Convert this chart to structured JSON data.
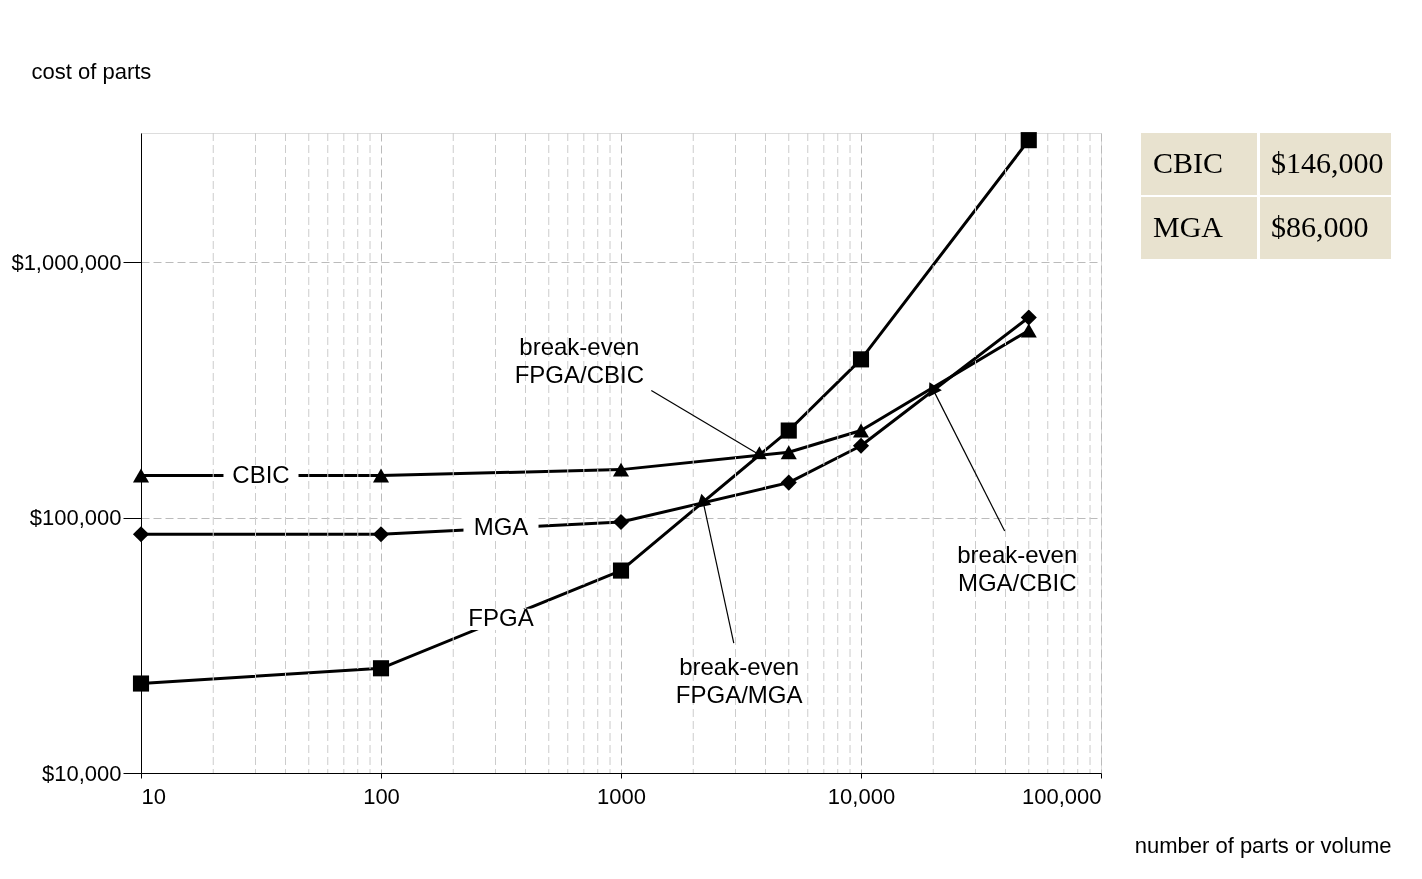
{
  "chart_data": {
    "type": "line",
    "xlabel": "number of parts or volume",
    "ylabel": "cost of parts",
    "log": "xy",
    "grid": true,
    "legend": false,
    "line_style": "solid",
    "x": [
      10,
      100,
      1000,
      5000,
      10000,
      50000
    ],
    "xlim": [
      10,
      100000
    ],
    "ylim": [
      10000,
      3200000
    ],
    "xticks": [
      10,
      100,
      1000,
      {
        "value": 10000,
        "label": "10,000"
      },
      {
        "value": 100000,
        "label": "100,000"
      }
    ],
    "yticks": [
      {
        "value": 10000,
        "label": "$10,000"
      },
      {
        "value": 100000,
        "label": "$100,000"
      },
      {
        "value": 1000000,
        "label": "$1,000,000"
      }
    ],
    "series": [
      {
        "name": "CBIC",
        "color": "#000000",
        "marker": "triangle",
        "values": [
          146000,
          146000,
          154000,
          180000,
          219000,
          540000
        ]
      },
      {
        "name": "MGA",
        "color": "#000000",
        "marker": "diamond",
        "values": [
          86000,
          86000,
          96000,
          137000,
          191000,
          607000
        ]
      },
      {
        "name": "FPGA",
        "color": "#000000",
        "marker": "square",
        "values": [
          22400,
          25700,
          62000,
          219000,
          416000,
          3000000
        ]
      }
    ],
    "annotations": [
      "CBIC $146,000",
      "MGA $86,000",
      {
        "text": "break-even\nFPGA/CBIC",
        "x": 3770,
        "y": 176000
      },
      {
        "text": "break-even\nFPGA/MGA",
        "x": 2200,
        "y": 115000
      },
      {
        "text": "break-even\nMGA/CBIC",
        "x": 20000,
        "y": 316000
      }
    ]
  }
}
